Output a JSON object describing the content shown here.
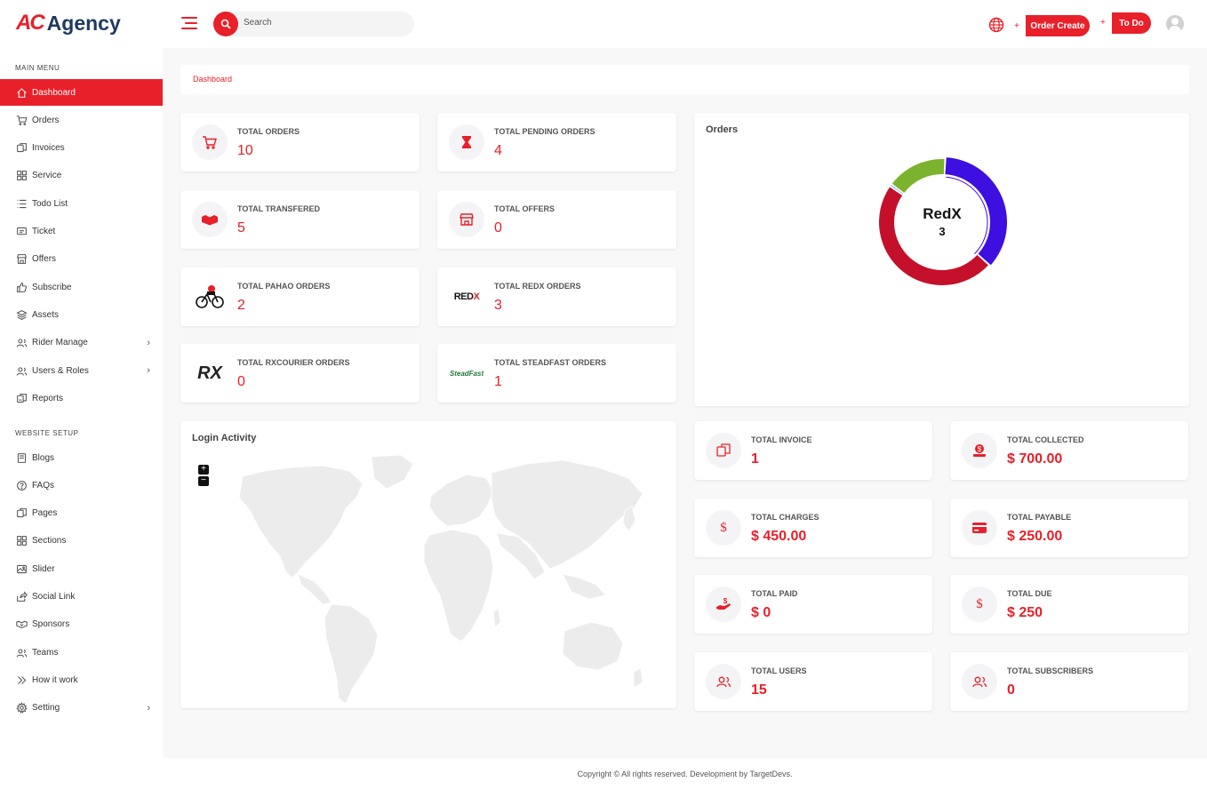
{
  "brand": {
    "mark": "AC",
    "name": "Agency"
  },
  "header": {
    "search_placeholder": "Search",
    "order_create": "Order Create",
    "todo": "To Do",
    "plus": "+"
  },
  "sidebar": {
    "main_menu_title": "MAIN MENU",
    "main_items": [
      {
        "label": "Dashboard",
        "icon": "home-icon",
        "active": true
      },
      {
        "label": "Orders",
        "icon": "cart-icon"
      },
      {
        "label": "Invoices",
        "icon": "invoice-icon"
      },
      {
        "label": "Service",
        "icon": "grid-icon"
      },
      {
        "label": "Todo List",
        "icon": "list-icon"
      },
      {
        "label": "Ticket",
        "icon": "ticket-icon"
      },
      {
        "label": "Offers",
        "icon": "store-icon"
      },
      {
        "label": "Subscribe",
        "icon": "thumbs-up-icon"
      },
      {
        "label": "Assets",
        "icon": "layers-icon"
      },
      {
        "label": "Rider Manage",
        "icon": "users-icon",
        "chevron": true
      },
      {
        "label": "Users & Roles",
        "icon": "users-icon",
        "chevron": true
      },
      {
        "label": "Reports",
        "icon": "report-icon"
      }
    ],
    "website_setup_title": "WEBSITE SETUP",
    "setup_items": [
      {
        "label": "Blogs",
        "icon": "book-icon"
      },
      {
        "label": "FAQs",
        "icon": "question-icon"
      },
      {
        "label": "Pages",
        "icon": "pages-icon"
      },
      {
        "label": "Sections",
        "icon": "grid-icon"
      },
      {
        "label": "Slider",
        "icon": "image-icon"
      },
      {
        "label": "Social Link",
        "icon": "share-icon"
      },
      {
        "label": "Sponsors",
        "icon": "handshake-icon"
      },
      {
        "label": "Teams",
        "icon": "users-icon"
      },
      {
        "label": "How it work",
        "icon": "chevrons-right-icon"
      },
      {
        "label": "Setting",
        "icon": "gear-icon",
        "chevron": true
      }
    ]
  },
  "breadcrumb": "Dashboard",
  "stats_top": [
    {
      "label": "TOTAL ORDERS",
      "value": "10",
      "icon": "cart-icon"
    },
    {
      "label": "TOTAL PENDING ORDERS",
      "value": "4",
      "icon": "hourglass-icon"
    },
    {
      "label": "TOTAL TRANSFERED",
      "value": "5",
      "icon": "handshake-icon"
    },
    {
      "label": "TOTAL OFFERS",
      "value": "0",
      "icon": "store-icon"
    },
    {
      "label": "TOTAL PAHAO ORDERS",
      "value": "2",
      "icon": "pathao-logo-icon"
    },
    {
      "label": "TOTAL REDX ORDERS",
      "value": "3",
      "icon": "redx-logo-icon",
      "logo_text": "REDX"
    },
    {
      "label": "TOTAL RXCOURIER ORDERS",
      "value": "0",
      "icon": "rx-logo-icon",
      "logo_text": "RX"
    },
    {
      "label": "TOTAL STEADFAST ORDERS",
      "value": "1",
      "icon": "steadfast-logo-icon",
      "logo_text": "SteadFast"
    }
  ],
  "orders_panel": {
    "title": "Orders",
    "center_label": "RedX",
    "center_value": "3"
  },
  "chart_data": {
    "type": "pie",
    "title": "Orders",
    "donut": true,
    "series": [
      {
        "value": 3,
        "color": "#3d0fe0"
      },
      {
        "value": 4,
        "color": "#c4102a"
      },
      {
        "value": 0.05,
        "color": "#1e88e5"
      },
      {
        "value": 1.3,
        "color": "#7cb32e"
      }
    ],
    "highlighted": {
      "label": "RedX",
      "value": 3
    }
  },
  "login_activity": {
    "title": "Login Activity",
    "zoom_in": "+",
    "zoom_out": "−"
  },
  "stats_bottom": [
    {
      "label": "TOTAL INVOICE",
      "value": "1",
      "icon": "invoice-icon"
    },
    {
      "label": "TOTAL COLLECTED",
      "value": "$ 700.00",
      "icon": "money-hand-icon"
    },
    {
      "label": "TOTAL CHARGES",
      "value": "$ 450.00",
      "icon": "dollar-icon"
    },
    {
      "label": "TOTAL PAYABLE",
      "value": "$ 250.00",
      "icon": "credit-card-icon"
    },
    {
      "label": "TOTAL PAID",
      "value": "$ 0",
      "icon": "paid-hand-icon"
    },
    {
      "label": "TOTAL DUE",
      "value": "$ 250",
      "icon": "dollar-icon"
    },
    {
      "label": "TOTAL USERS",
      "value": "15",
      "icon": "users-icon"
    },
    {
      "label": "TOTAL SUBSCRIBERS",
      "value": "0",
      "icon": "users-icon"
    }
  ],
  "footer": "Copyright © All rights reserved. Development by TargetDevs.",
  "colors": {
    "accent": "#e8202a",
    "brand_navy": "#1e3a5f"
  }
}
